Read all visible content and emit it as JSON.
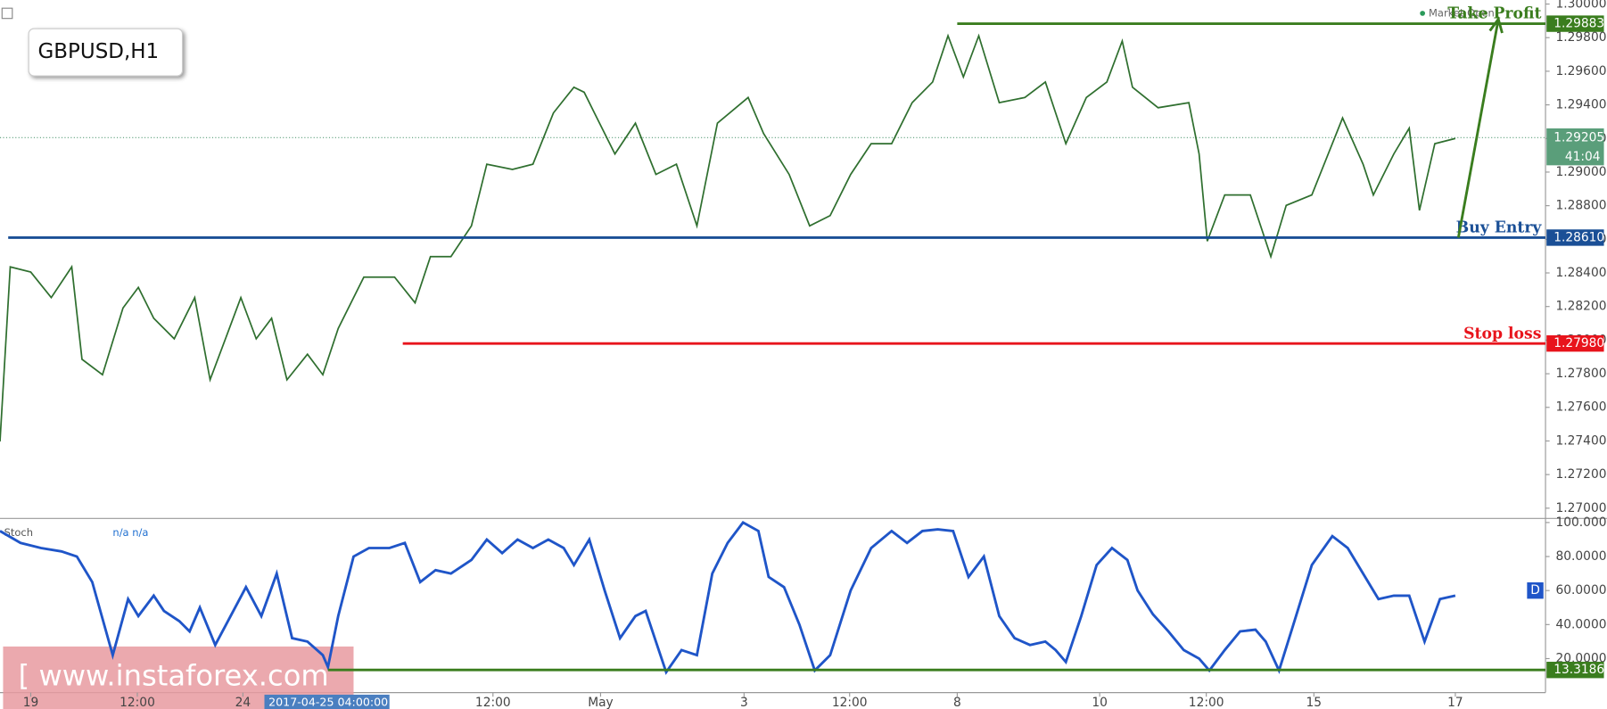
{
  "header": {
    "symbol": "GBPUSD,H1",
    "market_status": "Market Open"
  },
  "watermark": "[ www.instaforex.com",
  "crosshair_time": "2017-04-25 04:00:00",
  "chart_data": [
    {
      "type": "line",
      "xlim": [
        0,
        150.8
      ],
      "xticks": [
        {
          "value": 3,
          "label": "19"
        },
        {
          "value": 13.4,
          "label": "12:00"
        },
        {
          "value": 23.7,
          "label": "24"
        },
        {
          "value": 48.1,
          "label": "12:00"
        },
        {
          "value": 58.6,
          "label": "May"
        },
        {
          "value": 72.6,
          "label": "3"
        },
        {
          "value": 82.9,
          "label": "12:00"
        },
        {
          "value": 93.4,
          "label": "8"
        },
        {
          "value": 107.3,
          "label": "10"
        },
        {
          "value": 117.7,
          "label": "12:00"
        },
        {
          "value": 128.2,
          "label": "15"
        },
        {
          "value": 142,
          "label": "17"
        }
      ],
      "ylim": [
        1.26939,
        1.30024
      ],
      "yticks": [
        {
          "value": 1.27,
          "label": "1.27000"
        },
        {
          "value": 1.272,
          "label": "1.27200"
        },
        {
          "value": 1.274,
          "label": "1.27400"
        },
        {
          "value": 1.276,
          "label": "1.27600"
        },
        {
          "value": 1.278,
          "label": "1.27800"
        },
        {
          "value": 1.28,
          "label": "1.28000"
        },
        {
          "value": 1.282,
          "label": "1.28200"
        },
        {
          "value": 1.284,
          "label": "1.28400"
        },
        {
          "value": 1.286,
          "label": "1.28600"
        },
        {
          "value": 1.288,
          "label": "1.28800"
        },
        {
          "value": 1.29,
          "label": "1.29000"
        },
        {
          "value": 1.292,
          "label": "1.29200"
        },
        {
          "value": 1.294,
          "label": "1.29400"
        },
        {
          "value": 1.296,
          "label": "1.29600"
        },
        {
          "value": 1.298,
          "label": "1.29800"
        },
        {
          "value": 1.3,
          "label": "1.30000"
        }
      ],
      "x": [
        0,
        1,
        3,
        5,
        7,
        8,
        10,
        12,
        13.5,
        15,
        17,
        19,
        20.5,
        22,
        23.5,
        25,
        26.5,
        28,
        30,
        31.5,
        33,
        35.5,
        38.5,
        40.5,
        42,
        44,
        46,
        47.5,
        50,
        52,
        54,
        56,
        57,
        58,
        60,
        62,
        64,
        66,
        68,
        70,
        73,
        74.5,
        77,
        79,
        81,
        83,
        85,
        87,
        89,
        91,
        92.5,
        94,
        95.5,
        97.5,
        100,
        102,
        104,
        106,
        108,
        109.5,
        110.5,
        113,
        116,
        117,
        117.8,
        119.5,
        122,
        124,
        125.5,
        128,
        130,
        131,
        133,
        134,
        136,
        137.5,
        138.5,
        140,
        142
      ],
      "color": "#2f6f2f",
      "values": [
        1.27397,
        1.28436,
        1.28405,
        1.28253,
        1.28436,
        1.27886,
        1.27794,
        1.28191,
        1.28314,
        1.2813,
        1.28008,
        1.28253,
        1.27764,
        1.28008,
        1.28253,
        1.28008,
        1.2813,
        1.27764,
        1.27916,
        1.27794,
        1.28069,
        1.28375,
        1.28375,
        1.28222,
        1.28497,
        1.28497,
        1.2868,
        1.29047,
        1.29016,
        1.29047,
        1.29352,
        1.29505,
        1.29475,
        1.29352,
        1.29108,
        1.29291,
        1.28986,
        1.29047,
        1.2868,
        1.29291,
        1.29444,
        1.2923,
        1.28986,
        1.2868,
        1.28741,
        1.28986,
        1.29169,
        1.29169,
        1.29413,
        1.29536,
        1.29811,
        1.29566,
        1.29811,
        1.29413,
        1.29444,
        1.29536,
        1.29169,
        1.29444,
        1.29536,
        1.2978,
        1.29505,
        1.29383,
        1.29413,
        1.29108,
        1.28589,
        1.28864,
        1.28864,
        1.28497,
        1.28802,
        1.28864,
        1.29169,
        1.29322,
        1.29047,
        1.28864,
        1.29108,
        1.29261,
        1.28772,
        1.29169,
        1.292
      ],
      "levels": [
        {
          "name": "Take Profit",
          "value": 1.29883,
          "label": "1.29883",
          "x_start": 93.4,
          "color": "#3a7d1e"
        },
        {
          "name": "Buy Entry",
          "value": 1.2861,
          "label": "1.28610",
          "x_start": 0.8,
          "color": "#1a4f96"
        },
        {
          "name": "Stop loss",
          "value": 1.2798,
          "label": "1.27980",
          "x_start": 39.3,
          "color": "#e8141c"
        }
      ],
      "last": {
        "value": 1.29205,
        "label": "1.29205",
        "countdown": "41:04",
        "color": "#5a9e7a"
      },
      "arrow": {
        "x": [
          142.3,
          146.2
        ],
        "y": [
          1.2861,
          1.2991
        ],
        "color": "#3a7d1e"
      }
    },
    {
      "type": "line",
      "indicator": "Stoch",
      "indicator_values": "n/a n/a",
      "xlim": [
        0,
        150.8
      ],
      "ylim": [
        0,
        102.4
      ],
      "yticks": [
        {
          "value": 20,
          "label": "20.0000"
        },
        {
          "value": 40,
          "label": "40.0000"
        },
        {
          "value": 60,
          "label": "60.0000"
        },
        {
          "value": 80,
          "label": "80.0000"
        },
        {
          "value": 100,
          "label": "100.0000"
        }
      ],
      "x": [
        0,
        2,
        4,
        6,
        7.5,
        9,
        11,
        12.5,
        13.5,
        15,
        16,
        17.5,
        18.5,
        19.5,
        21,
        22.5,
        24,
        25.5,
        27,
        28.5,
        30,
        31.5,
        32,
        33,
        34.5,
        36,
        38,
        39.5,
        41,
        42.5,
        44,
        46,
        47.5,
        49,
        50.5,
        52,
        53.5,
        55,
        56,
        57.5,
        59,
        60.5,
        62,
        63,
        64,
        65,
        66.5,
        68,
        69.5,
        71,
        72.5,
        74,
        75,
        76.5,
        78,
        79.5,
        81,
        83,
        85,
        87,
        88.5,
        90,
        91.5,
        93,
        94.5,
        96,
        97.5,
        99,
        100.5,
        102,
        103,
        104,
        105.5,
        107,
        108.5,
        110,
        111,
        112.5,
        114,
        115.5,
        117,
        118,
        119.5,
        121,
        122.5,
        123.5,
        124.8,
        126.2,
        128,
        130,
        131.5,
        133,
        134.5,
        136,
        137.5,
        139,
        140.5,
        142
      ],
      "color": "#1f55c8",
      "values": [
        95,
        88,
        85,
        83,
        80,
        65,
        22,
        55,
        45,
        57,
        48,
        42,
        36,
        50,
        28,
        45,
        62,
        45,
        70,
        32,
        30,
        22,
        15,
        45,
        80,
        85,
        85,
        88,
        65,
        72,
        70,
        78,
        90,
        82,
        90,
        85,
        90,
        85,
        75,
        90,
        60,
        32,
        45,
        48,
        30,
        12,
        25,
        22,
        70,
        88,
        100,
        95,
        68,
        62,
        40,
        13,
        22,
        60,
        85,
        95,
        88,
        95,
        96,
        95,
        68,
        80,
        45,
        32,
        28,
        30,
        25,
        18,
        45,
        75,
        85,
        78,
        60,
        46,
        36,
        25,
        20,
        13,
        25,
        36,
        37,
        30,
        13,
        40,
        75,
        92,
        85,
        70,
        55,
        57,
        57,
        30,
        55,
        57
      ],
      "levels": [
        {
          "value": 13.3186,
          "x_start": 32,
          "color": "#3a7d1e"
        }
      ],
      "badge": "D",
      "badge_value": 60
    }
  ]
}
